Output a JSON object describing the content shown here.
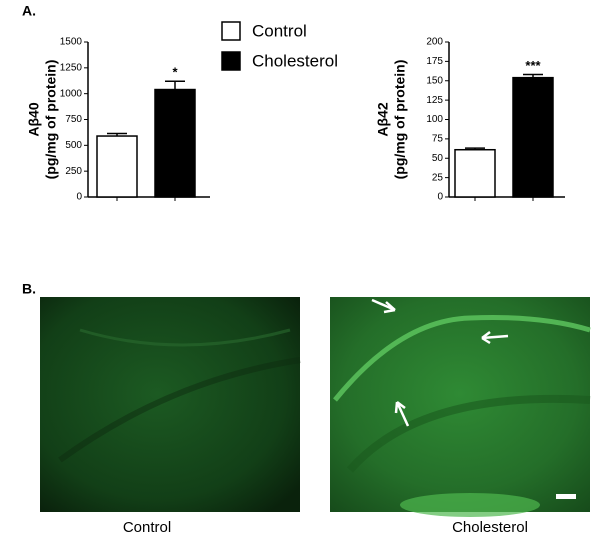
{
  "panel_a_label": "A.",
  "panel_b_label": "B.",
  "legend": [
    {
      "name": "Control",
      "color": "#ffffff"
    },
    {
      "name": "Cholesterol",
      "color": "#000000"
    }
  ],
  "chart_data": [
    {
      "type": "bar",
      "ylabel": "Aβ40",
      "ylabel_unit": "(pg/mg of protein)",
      "values": [
        590,
        1040
      ],
      "errors": [
        25,
        80
      ],
      "colors": [
        "#ffffff",
        "#000000"
      ],
      "annotation": "*",
      "ylim": [
        0,
        1500
      ],
      "yticks": [
        0,
        250,
        500,
        750,
        1000,
        1250,
        1500
      ]
    },
    {
      "type": "bar",
      "ylabel": "Aβ42",
      "ylabel_unit": "(pg/mg of protein)",
      "values": [
        61,
        154
      ],
      "errors": [
        2,
        4
      ],
      "colors": [
        "#ffffff",
        "#000000"
      ],
      "annotation": "***",
      "ylim": [
        0,
        200
      ],
      "yticks": [
        0,
        25,
        50,
        75,
        100,
        125,
        150,
        175,
        200
      ]
    }
  ],
  "images": [
    {
      "caption": "Control"
    },
    {
      "caption": "Cholesterol"
    }
  ]
}
